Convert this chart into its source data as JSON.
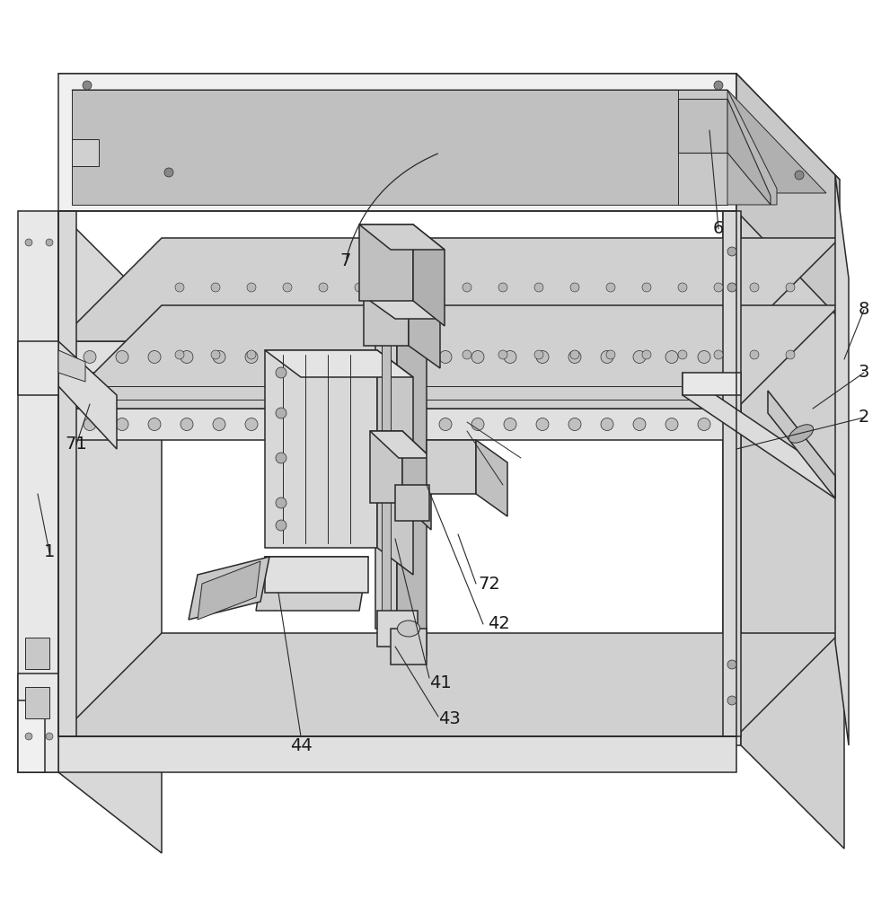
{
  "bg_color": "#ffffff",
  "lc": "#2a2a2a",
  "face_top": "#d4d4d4",
  "face_front": "#efefef",
  "face_right": "#c0c0c0",
  "face_inner": "#b8b8b8",
  "face_dark": "#a8a8a8",
  "figsize": [
    9.91,
    10.0
  ],
  "dpi": 100
}
